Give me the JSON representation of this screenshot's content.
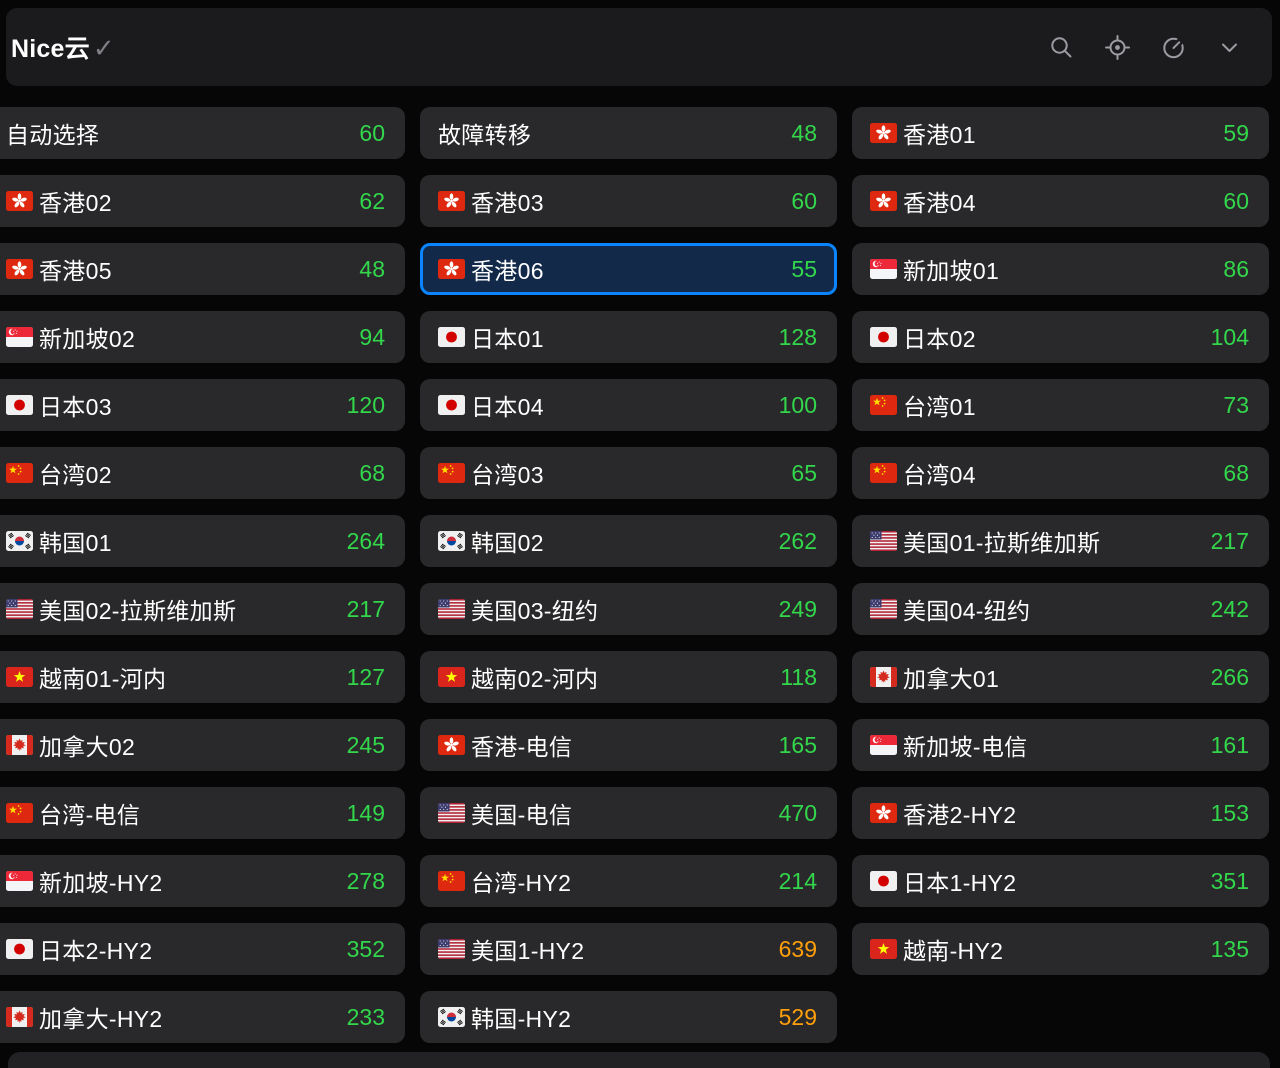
{
  "header": {
    "title": "Nice云",
    "status_check": "✓",
    "icons": [
      {
        "name": "search"
      },
      {
        "name": "locate"
      },
      {
        "name": "speedtest"
      },
      {
        "name": "collapse"
      }
    ]
  },
  "colors": {
    "green": "#32d74b",
    "orange": "#ff9f0a",
    "card_bg": "#29292b",
    "selected_bg": "#12294a",
    "selected_border": "#0a84ff"
  },
  "nodes": [
    {
      "name": "自动选择",
      "flag": "",
      "latency": "60",
      "color": "green",
      "selected": false
    },
    {
      "name": "故障转移",
      "flag": "",
      "latency": "48",
      "color": "green",
      "selected": false
    },
    {
      "name": "香港01",
      "flag": "hk",
      "latency": "59",
      "color": "green",
      "selected": false
    },
    {
      "name": "香港02",
      "flag": "hk",
      "latency": "62",
      "color": "green",
      "selected": false
    },
    {
      "name": "香港03",
      "flag": "hk",
      "latency": "60",
      "color": "green",
      "selected": false
    },
    {
      "name": "香港04",
      "flag": "hk",
      "latency": "60",
      "color": "green",
      "selected": false
    },
    {
      "name": "香港05",
      "flag": "hk",
      "latency": "48",
      "color": "green",
      "selected": false
    },
    {
      "name": "香港06",
      "flag": "hk",
      "latency": "55",
      "color": "green",
      "selected": true
    },
    {
      "name": "新加坡01",
      "flag": "sg",
      "latency": "86",
      "color": "green",
      "selected": false
    },
    {
      "name": "新加坡02",
      "flag": "sg",
      "latency": "94",
      "color": "green",
      "selected": false
    },
    {
      "name": "日本01",
      "flag": "jp",
      "latency": "128",
      "color": "green",
      "selected": false
    },
    {
      "name": "日本02",
      "flag": "jp",
      "latency": "104",
      "color": "green",
      "selected": false
    },
    {
      "name": "日本03",
      "flag": "jp",
      "latency": "120",
      "color": "green",
      "selected": false
    },
    {
      "name": "日本04",
      "flag": "jp",
      "latency": "100",
      "color": "green",
      "selected": false
    },
    {
      "name": "台湾01",
      "flag": "cn",
      "latency": "73",
      "color": "green",
      "selected": false
    },
    {
      "name": "台湾02",
      "flag": "cn",
      "latency": "68",
      "color": "green",
      "selected": false
    },
    {
      "name": "台湾03",
      "flag": "cn",
      "latency": "65",
      "color": "green",
      "selected": false
    },
    {
      "name": "台湾04",
      "flag": "cn",
      "latency": "68",
      "color": "green",
      "selected": false
    },
    {
      "name": "韩国01",
      "flag": "kr",
      "latency": "264",
      "color": "green",
      "selected": false
    },
    {
      "name": "韩国02",
      "flag": "kr",
      "latency": "262",
      "color": "green",
      "selected": false
    },
    {
      "name": "美国01-拉斯维加斯",
      "flag": "us",
      "latency": "217",
      "color": "green",
      "selected": false
    },
    {
      "name": "美国02-拉斯维加斯",
      "flag": "us",
      "latency": "217",
      "color": "green",
      "selected": false
    },
    {
      "name": "美国03-纽约",
      "flag": "us",
      "latency": "249",
      "color": "green",
      "selected": false
    },
    {
      "name": "美国04-纽约",
      "flag": "us",
      "latency": "242",
      "color": "green",
      "selected": false
    },
    {
      "name": "越南01-河内",
      "flag": "vn",
      "latency": "127",
      "color": "green",
      "selected": false
    },
    {
      "name": "越南02-河内",
      "flag": "vn",
      "latency": "118",
      "color": "green",
      "selected": false
    },
    {
      "name": "加拿大01",
      "flag": "ca",
      "latency": "266",
      "color": "green",
      "selected": false
    },
    {
      "name": "加拿大02",
      "flag": "ca",
      "latency": "245",
      "color": "green",
      "selected": false
    },
    {
      "name": "香港-电信",
      "flag": "hk",
      "latency": "165",
      "color": "green",
      "selected": false
    },
    {
      "name": "新加坡-电信",
      "flag": "sg",
      "latency": "161",
      "color": "green",
      "selected": false
    },
    {
      "name": "台湾-电信",
      "flag": "cn",
      "latency": "149",
      "color": "green",
      "selected": false
    },
    {
      "name": "美国-电信",
      "flag": "us",
      "latency": "470",
      "color": "green",
      "selected": false
    },
    {
      "name": "香港2-HY2",
      "flag": "hk",
      "latency": "153",
      "color": "green",
      "selected": false
    },
    {
      "name": "新加坡-HY2",
      "flag": "sg",
      "latency": "278",
      "color": "green",
      "selected": false
    },
    {
      "name": "台湾-HY2",
      "flag": "cn",
      "latency": "214",
      "color": "green",
      "selected": false
    },
    {
      "name": "日本1-HY2",
      "flag": "jp",
      "latency": "351",
      "color": "green",
      "selected": false
    },
    {
      "name": "日本2-HY2",
      "flag": "jp",
      "latency": "352",
      "color": "green",
      "selected": false
    },
    {
      "name": "美国1-HY2",
      "flag": "us",
      "latency": "639",
      "color": "orange",
      "selected": false
    },
    {
      "name": "越南-HY2",
      "flag": "vn",
      "latency": "135",
      "color": "green",
      "selected": false
    },
    {
      "name": "加拿大-HY2",
      "flag": "ca",
      "latency": "233",
      "color": "green",
      "selected": false
    },
    {
      "name": "韩国-HY2",
      "flag": "kr",
      "latency": "529",
      "color": "orange",
      "selected": false
    }
  ]
}
